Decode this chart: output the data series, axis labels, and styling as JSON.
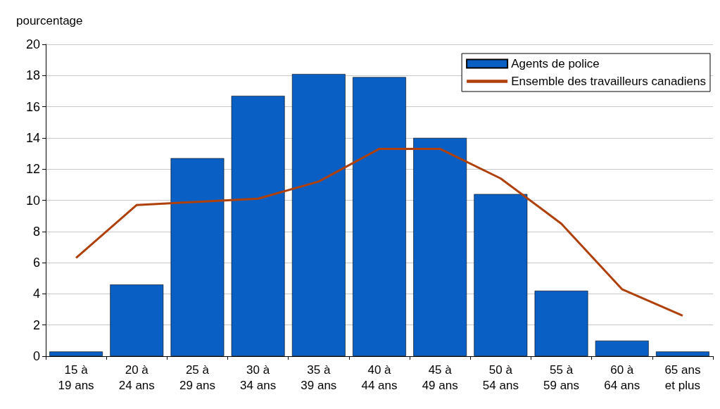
{
  "chart_data": {
    "type": "bar",
    "ylabel": "pourcentage",
    "categories": [
      "15 à\n19 ans",
      "20 à\n24 ans",
      "25 à\n29 ans",
      "30 à\n34 ans",
      "35 à\n39 ans",
      "40 à\n44 ans",
      "45 à\n49 ans",
      "50 à\n54 ans",
      "55 à\n59 ans",
      "60 à\n64 ans",
      "65 ans\net plus"
    ],
    "series": [
      {
        "name": "Agents de police",
        "color": "#0a5fc4",
        "values": [
          0.3,
          4.6,
          12.7,
          16.7,
          18.1,
          17.9,
          14.0,
          10.4,
          4.2,
          1.0,
          0.3
        ]
      },
      {
        "name": "Ensemble des travailleurs canadiens",
        "type": "line",
        "color": "#b0400a",
        "values": [
          6.3,
          9.7,
          9.9,
          10.1,
          11.2,
          13.3,
          13.3,
          11.4,
          8.5,
          4.3,
          2.6
        ]
      }
    ],
    "ylim": [
      0,
      20
    ],
    "yticks": [
      0,
      2,
      4,
      6,
      8,
      10,
      12,
      14,
      16,
      18,
      20
    ],
    "grid": "y",
    "legend": "top right",
    "marker": "none"
  }
}
